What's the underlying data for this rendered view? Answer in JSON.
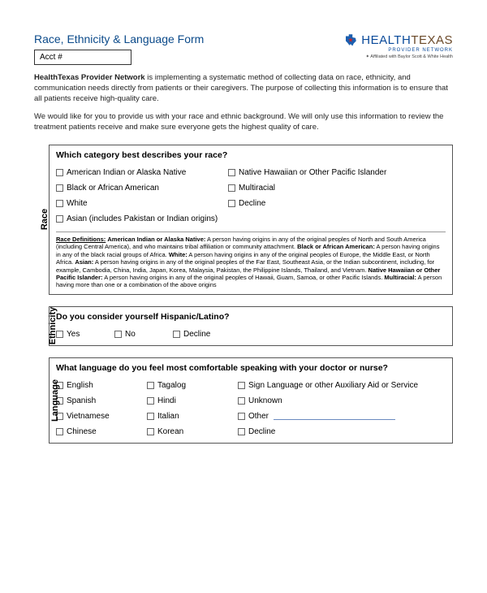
{
  "title": "Race, Ethnicity & Language Form",
  "acct_label": "Acct #",
  "logo": {
    "health": "HEALTH",
    "texas": "TEXAS",
    "sub": "PROVIDER NETWORK",
    "aff": "Affiliated with Baylor Scott & White Health",
    "icon_color": "#1b5fb0",
    "star_color": "#c62828"
  },
  "intro": {
    "strong": "HealthTexas Provider Network",
    "p1_rest": " is implementing a systematic method of collecting data on race, ethnicity, and communication needs directly from patients or their caregivers. The purpose of collecting this information is to ensure that all patients receive high-quality care.",
    "p2": "We would like for you to provide us with your race and ethnic background. We will only use this information to review the treatment patients receive and make sure everyone gets the highest quality of care."
  },
  "race": {
    "label": "Race",
    "question": "Which category best describes your race?",
    "options_col1": [
      "American Indian or Alaska Native",
      "Black or African American",
      "White",
      "Asian (includes Pakistan or Indian origins)"
    ],
    "options_col2": [
      "Native Hawaiian or Other Pacific Islander",
      "Multiracial",
      "Decline"
    ],
    "defs_title": "Race Definitions:",
    "defs_body": "American Indian or Alaska Native: A person having origins in any of the original peoples of North and South America (including Central America), and who maintains tribal affiliation or community attachment. Black or African American: A person having origins in any of the black racial groups of Africa. White: A person having origins in any of the original peoples of Europe, the Middle East, or North Africa. Asian: A person having origins in any of the original peoples of the Far East, Southeast Asia, or the Indian subcontinent, including, for example, Cambodia, China, India, Japan, Korea, Malaysia, Pakistan, the Philippine Islands, Thailand, and Vietnam. Native Hawaiian or Other Pacific Islander: A person having origins in any of the original peoples of Hawaii, Guam, Samoa, or other Pacific Islands. Multiracial: A person having more than one or a combination of the above origins"
  },
  "ethnicity": {
    "label": "Ethnicity",
    "question": "Do you consider yourself Hispanic/Latino?",
    "options": [
      "Yes",
      "No",
      "Decline"
    ]
  },
  "language": {
    "label": "Language",
    "question": "What language do you feel most comfortable speaking with your doctor or nurse?",
    "options_col1": [
      "English",
      "Spanish",
      "Vietnamese",
      "Chinese"
    ],
    "options_col2": [
      "Tagalog",
      "Hindi",
      "Italian",
      "Korean"
    ],
    "options_col3": [
      "Sign Language or other Auxiliary Aid or Service",
      "Unknown",
      "Other",
      "Decline"
    ]
  },
  "colors": {
    "title": "#0b4a8a",
    "border": "#555555",
    "text": "#222222"
  }
}
